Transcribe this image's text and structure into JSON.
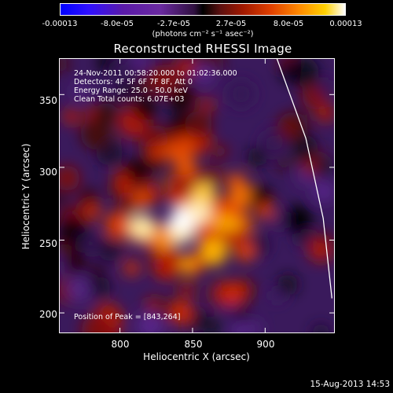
{
  "colorbar": {
    "ticks": [
      "-0.00013",
      "-8.0e-05",
      "-2.7e-05",
      "2.7e-05",
      "8.0e-05",
      "0.00013"
    ],
    "unit": "(photons cm⁻² s⁻¹ asec⁻²)"
  },
  "chart_data": {
    "type": "heatmap",
    "title": "Reconstructed RHESSI Image",
    "xlabel": "Heliocentric X (arcsec)",
    "ylabel": "Heliocentric Y (arcsec)",
    "xlim": [
      758,
      948
    ],
    "ylim": [
      186,
      375
    ],
    "x_ticks": [
      "800",
      "850",
      "900"
    ],
    "y_ticks": [
      "200",
      "250",
      "300",
      "350"
    ],
    "x_tick_values": [
      800,
      850,
      900
    ],
    "y_tick_values": [
      200,
      250,
      300,
      350
    ],
    "color_range": [
      -0.00013,
      0.00013
    ],
    "peak": [
      843,
      264
    ],
    "limb_points": [
      [
        908,
        375
      ],
      [
        928,
        320
      ],
      [
        940,
        265
      ],
      [
        946,
        210
      ]
    ],
    "annotations": [
      "24-Nov-2011 00:58:20.000 to 01:02:36.000",
      "Detectors: 4F 5F 6F 7F 8F, Att 0",
      "Energy Range: 25.0 - 50.0 keV",
      "Clean     Total counts: 6.07E+03"
    ],
    "peak_label": "Position of Peak = [843,264]"
  },
  "footer": {
    "timestamp": "15-Aug-2013 14:53"
  }
}
